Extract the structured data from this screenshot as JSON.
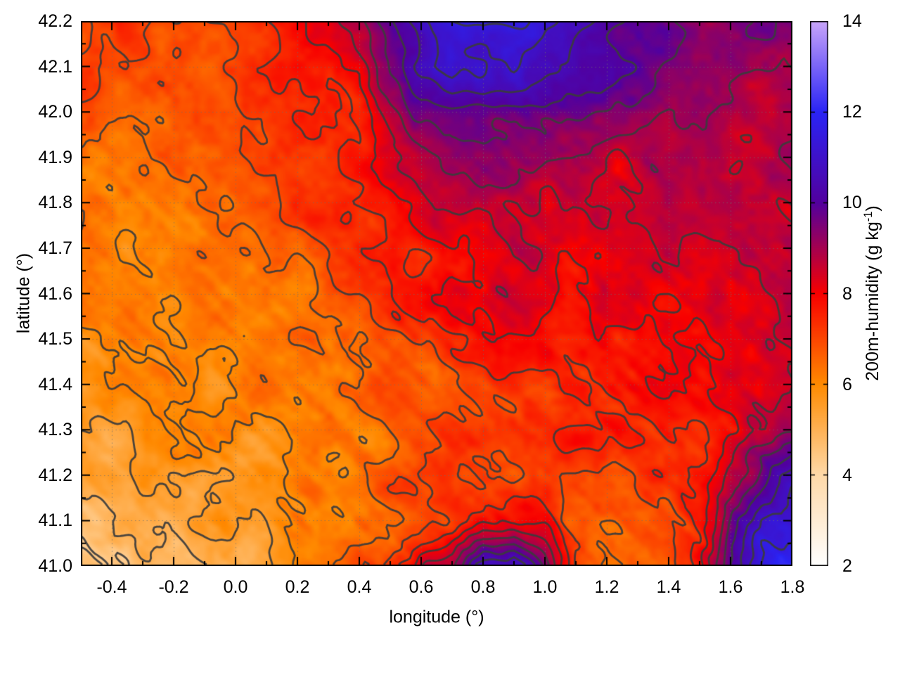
{
  "figure": {
    "description": "Heatmap of 200m humidity over longitude/latitude with contour lines and vertical colorbar"
  },
  "chart_data": {
    "type": "heatmap",
    "title": "",
    "xlabel": "longitude (°)",
    "ylabel": "latitude (°)",
    "colorbar_label": "200m-humidity (g kg⁻¹)",
    "colorbar_label_main": "200m-humidity (g kg",
    "colorbar_label_sup": "-1",
    "colorbar_label_end": ")",
    "xlim": [
      -0.5,
      1.8
    ],
    "ylim": [
      41.0,
      42.2
    ],
    "zlim": [
      2,
      14
    ],
    "grid_on": true,
    "xtick_labels": [
      "-0.4",
      "-0.2",
      "0.0",
      "0.2",
      "0.4",
      "0.6",
      "0.8",
      "1.0",
      "1.2",
      "1.4",
      "1.6",
      "1.8"
    ],
    "ytick_labels": [
      "41.0",
      "41.1",
      "41.2",
      "41.3",
      "41.4",
      "41.5",
      "41.6",
      "41.7",
      "41.8",
      "41.9",
      "42.0",
      "42.1",
      "42.2"
    ],
    "colorbar_tick_labels": [
      "2",
      "4",
      "6",
      "8",
      "10",
      "12",
      "14"
    ],
    "x_minor_step": 0.1,
    "y_minor_step": 0.05,
    "palette_stops": [
      [
        2,
        "#ffffff"
      ],
      [
        4,
        "#ffd9a8"
      ],
      [
        6,
        "#ff8a00"
      ],
      [
        8,
        "#f80000"
      ],
      [
        10,
        "#52009e"
      ],
      [
        12,
        "#2a24f5"
      ],
      [
        14,
        "#c9a5fa"
      ]
    ],
    "contour_color": "#3c3c3c",
    "contour_levels": {
      "start": 4.5,
      "step": 0.5,
      "end": 11.5
    },
    "heatmap_grid": {
      "lon": [
        -0.5,
        -0.4,
        -0.3,
        -0.2,
        -0.1,
        0.0,
        0.1,
        0.2,
        0.3,
        0.4,
        0.5,
        0.6,
        0.7,
        0.8,
        0.9,
        1.0,
        1.1,
        1.2,
        1.3,
        1.4,
        1.5,
        1.6,
        1.7,
        1.8
      ],
      "lat_top_to_bottom": [
        42.2,
        42.1,
        42.0,
        41.9,
        41.8,
        41.7,
        41.6,
        41.5,
        41.4,
        41.3,
        41.2,
        41.1,
        41.0
      ],
      "values_g_per_kg": [
        [
          7.0,
          7.0,
          7.0,
          7.2,
          7.2,
          7.3,
          7.5,
          7.8,
          8.0,
          8.5,
          10.0,
          11.0,
          11.5,
          11.8,
          11.5,
          11.2,
          11.0,
          10.5,
          10.0,
          9.5,
          9.3,
          9.2,
          9.3,
          9.5
        ],
        [
          6.9,
          6.9,
          7.0,
          7.0,
          7.1,
          7.2,
          7.4,
          7.6,
          7.9,
          8.3,
          9.5,
          10.5,
          11.2,
          11.0,
          10.8,
          10.5,
          10.2,
          10.0,
          9.6,
          9.2,
          9.0,
          9.0,
          9.0,
          9.2
        ],
        [
          6.8,
          6.8,
          6.9,
          6.9,
          7.0,
          7.0,
          7.2,
          7.4,
          7.6,
          7.9,
          8.8,
          9.6,
          10.0,
          10.2,
          10.0,
          10.0,
          9.8,
          9.4,
          9.0,
          8.8,
          8.8,
          8.8,
          8.9,
          9.0
        ],
        [
          6.5,
          6.6,
          6.6,
          6.7,
          6.8,
          6.9,
          7.0,
          7.2,
          7.4,
          7.6,
          8.2,
          8.8,
          9.2,
          9.4,
          9.4,
          9.2,
          9.0,
          8.8,
          8.6,
          8.6,
          8.6,
          8.7,
          8.8,
          8.9
        ],
        [
          6.3,
          6.4,
          6.5,
          6.5,
          6.6,
          6.7,
          6.9,
          7.0,
          7.2,
          7.4,
          7.8,
          8.2,
          8.5,
          8.7,
          8.7,
          8.6,
          8.6,
          8.5,
          8.5,
          8.5,
          8.5,
          8.6,
          8.7,
          8.8
        ],
        [
          6.2,
          6.2,
          6.3,
          6.4,
          6.4,
          6.5,
          6.7,
          6.8,
          7.0,
          7.2,
          7.5,
          7.8,
          8.1,
          8.3,
          8.4,
          8.3,
          8.3,
          8.3,
          8.3,
          8.4,
          8.4,
          8.5,
          8.5,
          8.6
        ],
        [
          6.0,
          6.1,
          6.1,
          6.2,
          6.3,
          6.3,
          6.5,
          6.6,
          6.8,
          7.0,
          7.2,
          7.5,
          7.8,
          8.0,
          8.1,
          8.1,
          8.2,
          8.2,
          8.2,
          8.2,
          8.3,
          8.3,
          8.4,
          8.5
        ],
        [
          5.8,
          5.9,
          6.0,
          6.0,
          6.1,
          6.1,
          6.3,
          6.4,
          6.5,
          6.8,
          7.0,
          7.2,
          7.5,
          7.7,
          7.9,
          7.9,
          8.0,
          8.0,
          8.0,
          8.0,
          8.1,
          8.1,
          8.2,
          8.3
        ],
        [
          5.6,
          5.7,
          5.8,
          5.8,
          5.9,
          6.0,
          6.1,
          6.2,
          6.4,
          6.6,
          6.8,
          7.0,
          7.2,
          7.4,
          7.5,
          7.6,
          7.7,
          7.8,
          7.8,
          7.9,
          8.0,
          8.0,
          8.1,
          8.2
        ],
        [
          5.5,
          5.5,
          5.6,
          5.7,
          5.8,
          5.8,
          6.0,
          6.1,
          6.3,
          6.5,
          6.7,
          6.8,
          7.0,
          7.0,
          7.1,
          7.2,
          7.3,
          7.4,
          7.5,
          7.7,
          7.8,
          7.9,
          8.2,
          8.6
        ],
        [
          5.3,
          5.4,
          5.5,
          5.5,
          5.6,
          5.6,
          5.8,
          6.0,
          6.1,
          6.3,
          6.5,
          6.6,
          6.8,
          6.9,
          6.9,
          7.0,
          7.0,
          7.0,
          7.2,
          7.3,
          7.6,
          8.8,
          9.8,
          10.8
        ],
        [
          5.0,
          5.2,
          5.3,
          5.4,
          5.5,
          5.5,
          5.7,
          5.9,
          6.1,
          6.3,
          6.5,
          6.7,
          7.2,
          7.8,
          8.0,
          7.8,
          7.0,
          6.8,
          6.9,
          7.0,
          7.5,
          9.5,
          11.0,
          11.5
        ],
        [
          4.8,
          4.9,
          5.0,
          5.1,
          5.3,
          5.4,
          5.6,
          6.0,
          6.3,
          6.6,
          7.4,
          8.5,
          8.8,
          10.5,
          11.0,
          9.5,
          7.2,
          6.6,
          6.6,
          6.8,
          7.5,
          10.0,
          11.5,
          12.0
        ]
      ]
    }
  }
}
